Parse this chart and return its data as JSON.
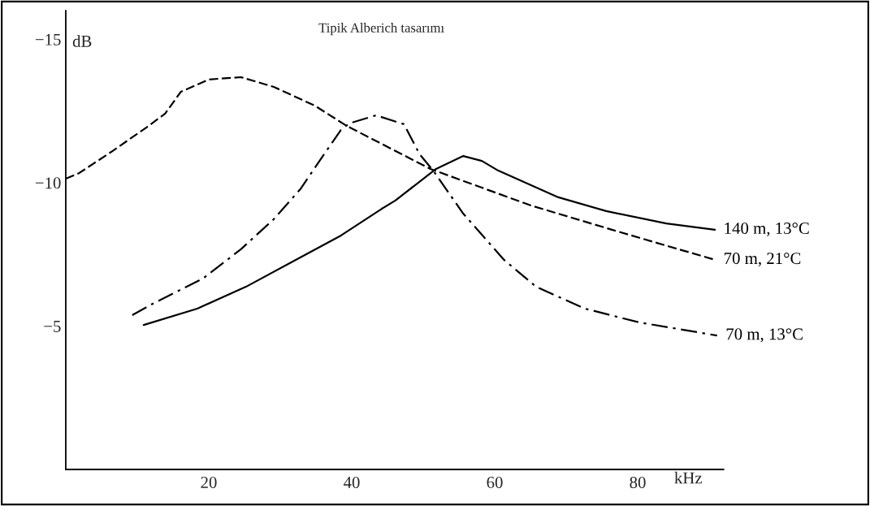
{
  "chart_data": {
    "type": "line",
    "title": "Tipik Alberich tasarımı",
    "xlabel": "kHz",
    "ylabel": "dB",
    "xlim": [
      0,
      92
    ],
    "xticks": [
      20,
      40,
      60,
      80
    ],
    "ylim": [
      0,
      -16
    ],
    "yticks": [
      {
        "value": -15,
        "label": "−15"
      },
      {
        "value": -10,
        "label": "−10"
      },
      {
        "value": -5,
        "label": "−5"
      }
    ],
    "grid": false,
    "legend": false,
    "series": [
      {
        "name": "140 m, 13°C",
        "color": "#000000",
        "line_style": "solid",
        "x": [
          10.9,
          18.4,
          25.2,
          32.8,
          38.5,
          44.2,
          46.1,
          51.8,
          55.6,
          58.2,
          60.5,
          68.9,
          75.6,
          84.0,
          90.8
        ],
        "values": [
          -5.04,
          -5.61,
          -6.37,
          -7.39,
          -8.16,
          -9.09,
          -9.38,
          -10.48,
          -10.93,
          -10.76,
          -10.42,
          -9.49,
          -9.01,
          -8.58,
          -8.36
        ]
      },
      {
        "name": "70 m, 21°C",
        "color": "#000000",
        "line_style": "dashed",
        "x": [
          0,
          1.9,
          6.4,
          11.3,
          13.9,
          16.1,
          20.0,
          24.5,
          29.1,
          34.8,
          39.3,
          51.0,
          65.0,
          76.4,
          90.8
        ],
        "values": [
          -10.14,
          -10.34,
          -11.08,
          -11.93,
          -12.41,
          -13.17,
          -13.6,
          -13.68,
          -13.34,
          -12.69,
          -11.98,
          -10.48,
          -9.21,
          -8.36,
          -7.31
        ]
      },
      {
        "name": "70 m, 13°C",
        "color": "#000000",
        "line_style": "dashdot",
        "x": [
          9.3,
          12.4,
          19.2,
          24.5,
          29.1,
          32.8,
          35.9,
          38.5,
          39.7,
          43.4,
          47.3,
          49.5,
          51.4,
          55.6,
          61.3,
          65.8,
          72.6,
          80.2,
          91.1
        ],
        "values": [
          -5.38,
          -5.81,
          -6.66,
          -7.68,
          -8.73,
          -9.77,
          -10.91,
          -11.84,
          -12.07,
          -12.35,
          -12.04,
          -10.99,
          -10.42,
          -8.92,
          -7.31,
          -6.37,
          -5.61,
          -5.13,
          -4.67
        ]
      }
    ]
  }
}
